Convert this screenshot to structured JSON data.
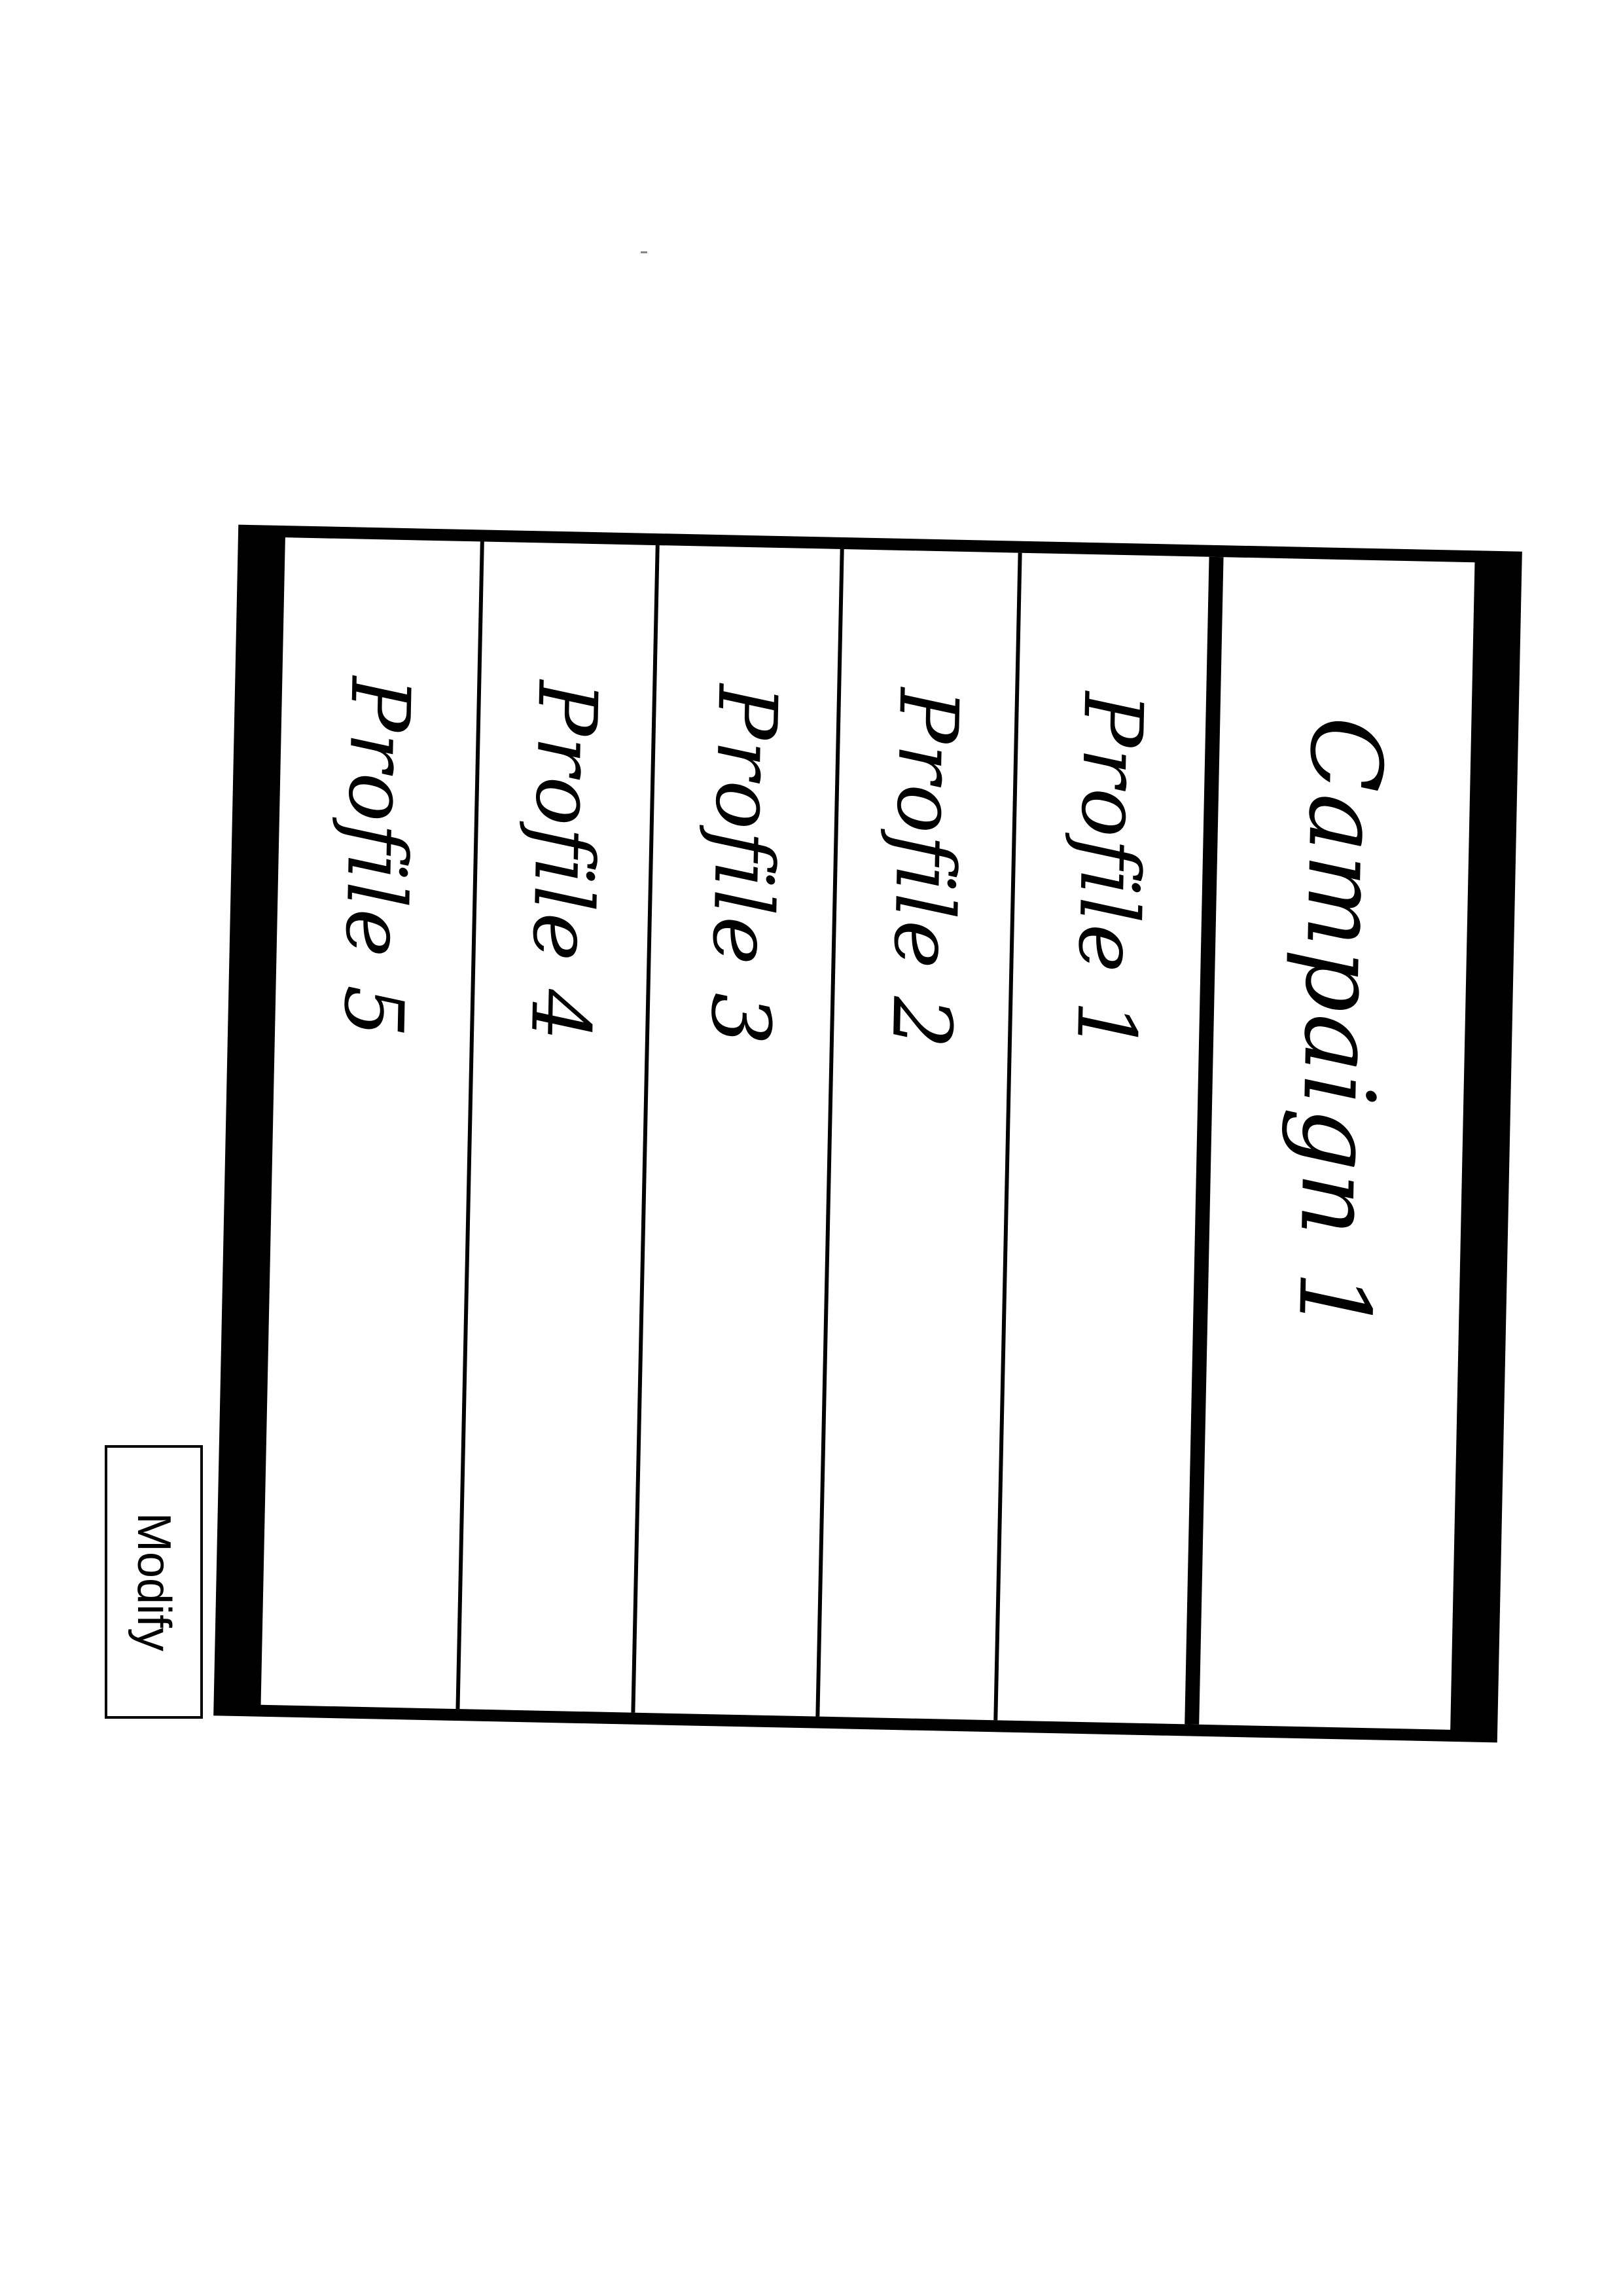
{
  "campaign": {
    "title": "Campaign 1"
  },
  "profiles": [
    {
      "label": "Profile 5"
    },
    {
      "label": "Profile 4"
    },
    {
      "label": "Profile 3"
    },
    {
      "label": "Profile 2"
    },
    {
      "label": "Profile 1"
    }
  ],
  "actions": {
    "modify_label": "Modify"
  }
}
